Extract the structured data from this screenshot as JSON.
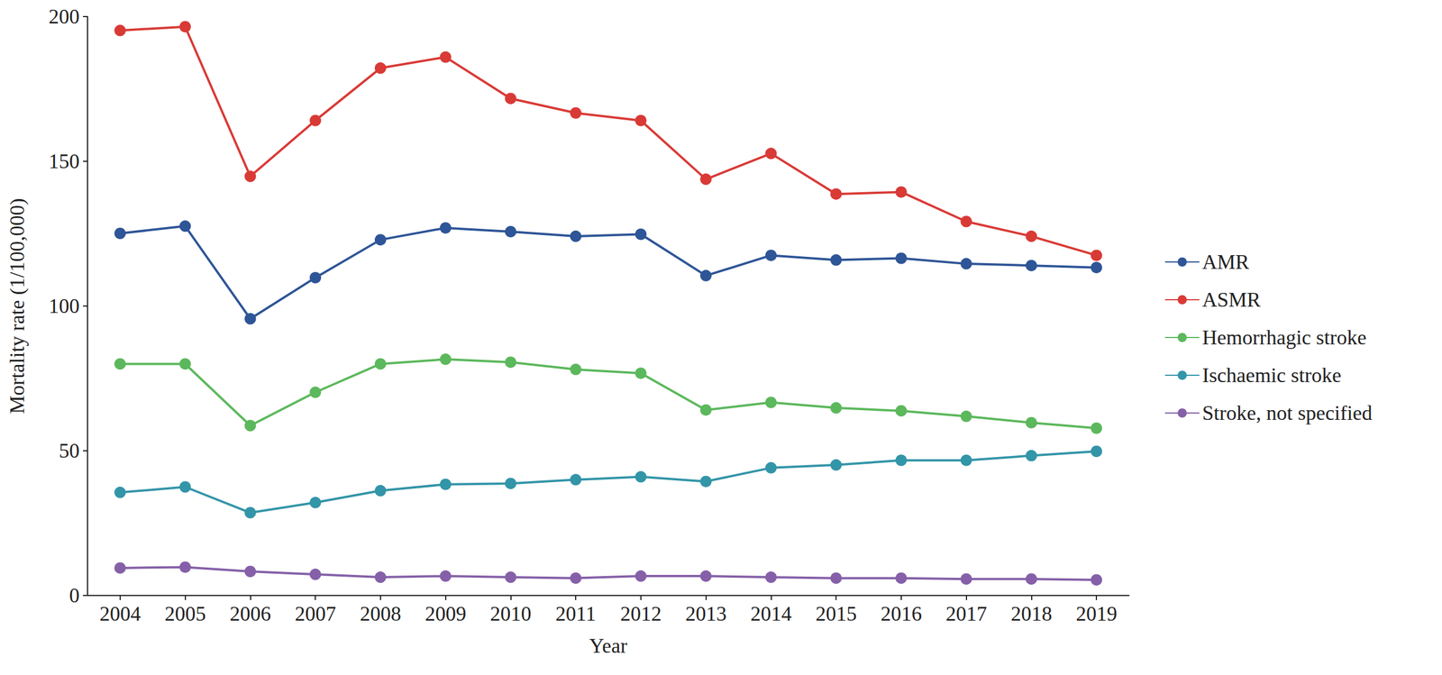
{
  "chart_data": {
    "type": "line",
    "x_label": "Year",
    "y_label": "Mortality rate (1/100,000)",
    "categories": [
      "2004",
      "2005",
      "2006",
      "2007",
      "2008",
      "2009",
      "2010",
      "2011",
      "2012",
      "2013",
      "2014",
      "2015",
      "2016",
      "2017",
      "2018",
      "2019"
    ],
    "ylim": [
      0,
      200
    ],
    "yticks": [
      0,
      50,
      100,
      150,
      200
    ],
    "grid": false,
    "legend": "right",
    "marker": "circle",
    "series": [
      {
        "name": "AMR",
        "color": "#2e5597",
        "values": [
          125.1,
          127.6,
          95.6,
          109.8,
          122.9,
          127.0,
          125.7,
          124.1,
          124.8,
          110.5,
          117.5,
          115.9,
          116.5,
          114.6,
          114.0,
          113.3
        ]
      },
      {
        "name": "ASMR",
        "color": "#d93a36",
        "values": [
          195.2,
          196.5,
          144.8,
          164.1,
          182.2,
          186.0,
          171.7,
          166.7,
          164.1,
          143.8,
          152.7,
          138.7,
          139.4,
          129.2,
          124.1,
          117.5
        ]
      },
      {
        "name": "Hemorrhagic stroke",
        "color": "#5cb85c",
        "values": [
          80.0,
          80.0,
          58.7,
          70.2,
          80.0,
          81.6,
          80.6,
          78.1,
          76.8,
          64.1,
          66.7,
          64.8,
          63.8,
          61.9,
          59.7,
          57.8
        ]
      },
      {
        "name": "Ischaemic stroke",
        "color": "#3395a8",
        "values": [
          35.6,
          37.5,
          28.6,
          32.1,
          36.2,
          38.4,
          38.7,
          40.0,
          41.0,
          39.4,
          44.1,
          45.1,
          46.7,
          46.7,
          48.3,
          49.8
        ]
      },
      {
        "name": "Stroke, not specified",
        "color": "#8560a8",
        "values": [
          9.5,
          9.8,
          8.3,
          7.3,
          6.3,
          6.7,
          6.3,
          6.0,
          6.7,
          6.7,
          6.3,
          6.0,
          6.0,
          5.7,
          5.7,
          5.4
        ]
      }
    ]
  }
}
